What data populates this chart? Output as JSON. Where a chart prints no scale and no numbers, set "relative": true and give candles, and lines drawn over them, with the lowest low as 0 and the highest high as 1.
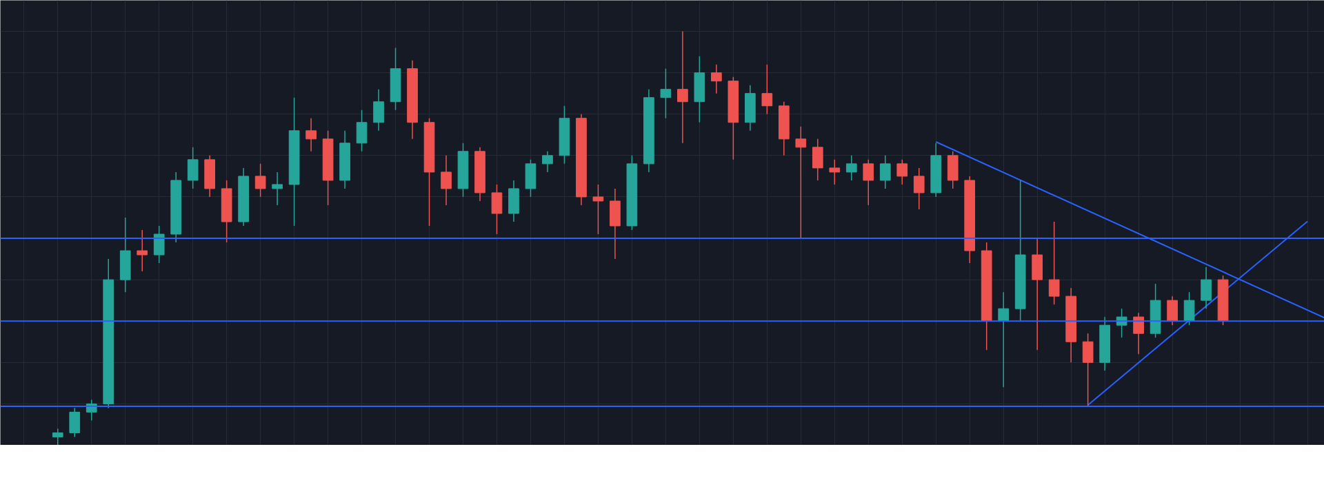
{
  "chart_data": {
    "type": "candlestick",
    "relative": true,
    "grid": true,
    "tick_labels": false,
    "categories": [
      null,
      null,
      null,
      null,
      null,
      null,
      null,
      null,
      null,
      null,
      null,
      null,
      null,
      null,
      null,
      null,
      null,
      null,
      null,
      null,
      null,
      null,
      null,
      null,
      null,
      null,
      null,
      null,
      null,
      null,
      null,
      null,
      null,
      null,
      null,
      null,
      null,
      null,
      null,
      null,
      null,
      null,
      null,
      null,
      null,
      null,
      null,
      null,
      null,
      null,
      null,
      null,
      null,
      null,
      null,
      null,
      null,
      null,
      null,
      null,
      null,
      null,
      null,
      null,
      null,
      null,
      null,
      null,
      null,
      null,
      null,
      null,
      null,
      null,
      null,
      null
    ],
    "ohlc": [
      [
        0.02,
        0.04,
        0.0,
        0.03
      ],
      [
        0.03,
        0.09,
        0.02,
        0.08
      ],
      [
        0.08,
        0.11,
        0.06,
        0.1
      ],
      [
        0.1,
        0.45,
        0.09,
        0.4
      ],
      [
        0.4,
        0.55,
        0.37,
        0.47
      ],
      [
        0.47,
        0.52,
        0.42,
        0.46
      ],
      [
        0.46,
        0.53,
        0.44,
        0.51
      ],
      [
        0.51,
        0.66,
        0.49,
        0.64
      ],
      [
        0.64,
        0.72,
        0.62,
        0.69
      ],
      [
        0.69,
        0.7,
        0.6,
        0.62
      ],
      [
        0.62,
        0.64,
        0.49,
        0.54
      ],
      [
        0.54,
        0.67,
        0.53,
        0.65
      ],
      [
        0.65,
        0.68,
        0.6,
        0.62
      ],
      [
        0.62,
        0.66,
        0.58,
        0.63
      ],
      [
        0.63,
        0.84,
        0.53,
        0.76
      ],
      [
        0.76,
        0.79,
        0.71,
        0.74
      ],
      [
        0.74,
        0.76,
        0.58,
        0.64
      ],
      [
        0.64,
        0.76,
        0.62,
        0.73
      ],
      [
        0.73,
        0.81,
        0.71,
        0.78
      ],
      [
        0.78,
        0.86,
        0.76,
        0.83
      ],
      [
        0.83,
        0.96,
        0.81,
        0.91
      ],
      [
        0.91,
        0.93,
        0.74,
        0.78
      ],
      [
        0.78,
        0.79,
        0.53,
        0.66
      ],
      [
        0.66,
        0.7,
        0.58,
        0.62
      ],
      [
        0.62,
        0.73,
        0.6,
        0.71
      ],
      [
        0.71,
        0.72,
        0.59,
        0.61
      ],
      [
        0.61,
        0.63,
        0.51,
        0.56
      ],
      [
        0.56,
        0.64,
        0.54,
        0.62
      ],
      [
        0.62,
        0.69,
        0.6,
        0.68
      ],
      [
        0.68,
        0.71,
        0.66,
        0.7
      ],
      [
        0.7,
        0.82,
        0.68,
        0.79
      ],
      [
        0.79,
        0.8,
        0.58,
        0.6
      ],
      [
        0.6,
        0.63,
        0.51,
        0.59
      ],
      [
        0.59,
        0.62,
        0.45,
        0.53
      ],
      [
        0.53,
        0.7,
        0.52,
        0.68
      ],
      [
        0.68,
        0.86,
        0.66,
        0.84
      ],
      [
        0.84,
        0.91,
        0.79,
        0.86
      ],
      [
        0.86,
        1.0,
        0.73,
        0.83
      ],
      [
        0.83,
        0.94,
        0.78,
        0.9
      ],
      [
        0.9,
        0.92,
        0.85,
        0.88
      ],
      [
        0.88,
        0.89,
        0.69,
        0.78
      ],
      [
        0.78,
        0.87,
        0.76,
        0.85
      ],
      [
        0.85,
        0.92,
        0.8,
        0.82
      ],
      [
        0.82,
        0.83,
        0.7,
        0.74
      ],
      [
        0.74,
        0.77,
        0.5,
        0.72
      ],
      [
        0.72,
        0.74,
        0.64,
        0.67
      ],
      [
        0.67,
        0.69,
        0.63,
        0.66
      ],
      [
        0.66,
        0.7,
        0.64,
        0.68
      ],
      [
        0.68,
        0.69,
        0.58,
        0.64
      ],
      [
        0.64,
        0.7,
        0.62,
        0.68
      ],
      [
        0.68,
        0.69,
        0.63,
        0.65
      ],
      [
        0.65,
        0.67,
        0.57,
        0.61
      ],
      [
        0.61,
        0.73,
        0.6,
        0.7
      ],
      [
        0.7,
        0.71,
        0.62,
        0.64
      ],
      [
        0.64,
        0.65,
        0.44,
        0.47
      ],
      [
        0.47,
        0.49,
        0.23,
        0.3
      ],
      [
        0.3,
        0.37,
        0.14,
        0.33
      ],
      [
        0.33,
        0.64,
        0.3,
        0.46
      ],
      [
        0.46,
        0.5,
        0.23,
        0.4
      ],
      [
        0.4,
        0.54,
        0.34,
        0.36
      ],
      [
        0.36,
        0.38,
        0.2,
        0.25
      ],
      [
        0.25,
        0.27,
        0.095,
        0.2
      ],
      [
        0.2,
        0.31,
        0.18,
        0.29
      ],
      [
        0.29,
        0.33,
        0.26,
        0.31
      ],
      [
        0.31,
        0.32,
        0.22,
        0.27
      ],
      [
        0.27,
        0.39,
        0.26,
        0.35
      ],
      [
        0.35,
        0.36,
        0.29,
        0.3
      ],
      [
        0.3,
        0.37,
        0.29,
        0.35
      ],
      [
        0.35,
        0.43,
        0.33,
        0.4
      ],
      [
        0.4,
        0.41,
        0.29,
        0.3
      ],
      null,
      null,
      null,
      null,
      null,
      null
    ],
    "colors": [
      "#26a69a",
      "#26a69a",
      "#26a69a",
      "#26a69a",
      "#26a69a",
      "#ef5350",
      "#26a69a",
      "#26a69a",
      "#26a69a",
      "#ef5350",
      "#ef5350",
      "#26a69a",
      "#ef5350",
      "#26a69a",
      "#26a69a",
      "#ef5350",
      "#ef5350",
      "#26a69a",
      "#26a69a",
      "#26a69a",
      "#26a69a",
      "#ef5350",
      "#ef5350",
      "#ef5350",
      "#26a69a",
      "#ef5350",
      "#ef5350",
      "#26a69a",
      "#26a69a",
      "#26a69a",
      "#26a69a",
      "#ef5350",
      "#ef5350",
      "#ef5350",
      "#26a69a",
      "#26a69a",
      "#26a69a",
      "#ef5350",
      "#26a69a",
      "#ef5350",
      "#ef5350",
      "#26a69a",
      "#ef5350",
      "#ef5350",
      "#ef5350",
      "#ef5350",
      "#ef5350",
      "#26a69a",
      "#ef5350",
      "#26a69a",
      "#ef5350",
      "#ef5350",
      "#26a69a",
      "#ef5350",
      "#ef5350",
      "#ef5350",
      "#26a69a",
      "#26a69a",
      "#ef5350",
      "#ef5350",
      "#ef5350",
      "#ef5350",
      "#26a69a",
      "#26a69a",
      "#ef5350",
      "#26a69a",
      "#ef5350",
      "#26a69a",
      "#26a69a",
      "#ef5350",
      null,
      null,
      null,
      null,
      null,
      null
    ],
    "series": [
      {
        "type": "line",
        "color": "#2962ff",
        "values": [
          null,
          null,
          null,
          null,
          null,
          null,
          null,
          null,
          null,
          null,
          null,
          null,
          null,
          null,
          null,
          null,
          null,
          null,
          null,
          null,
          null,
          null,
          null,
          null,
          null,
          null,
          null,
          null,
          null,
          null,
          null,
          null,
          null,
          null,
          null,
          null,
          null,
          null,
          null,
          null,
          null,
          null,
          null,
          null,
          null,
          null,
          null,
          null,
          null,
          null,
          null,
          null,
          0.733,
          null,
          null,
          null,
          null,
          null,
          null,
          null,
          null,
          null,
          null,
          null,
          null,
          null,
          null,
          null,
          null,
          null,
          null,
          null,
          null,
          null,
          null,
          0.308
        ]
      },
      {
        "type": "line",
        "color": "#2962ff",
        "values": [
          null,
          null,
          null,
          null,
          null,
          null,
          null,
          null,
          null,
          null,
          null,
          null,
          null,
          null,
          null,
          null,
          null,
          null,
          null,
          null,
          null,
          null,
          null,
          null,
          null,
          null,
          null,
          null,
          null,
          null,
          null,
          null,
          null,
          null,
          null,
          null,
          null,
          null,
          null,
          null,
          null,
          null,
          null,
          null,
          null,
          null,
          null,
          null,
          null,
          null,
          null,
          null,
          null,
          null,
          null,
          null,
          null,
          null,
          null,
          null,
          null,
          0.097,
          null,
          null,
          null,
          null,
          null,
          null,
          null,
          null,
          null,
          null,
          null,
          null,
          0.541,
          null
        ]
      }
    ],
    "ref_lines": [
      {
        "axis": "y",
        "value": 0.5,
        "color": "#2962ff"
      },
      {
        "axis": "y",
        "value": 0.3,
        "color": "#2962ff"
      },
      {
        "axis": "y",
        "value": 0.094,
        "color": "#2962ff"
      }
    ]
  }
}
